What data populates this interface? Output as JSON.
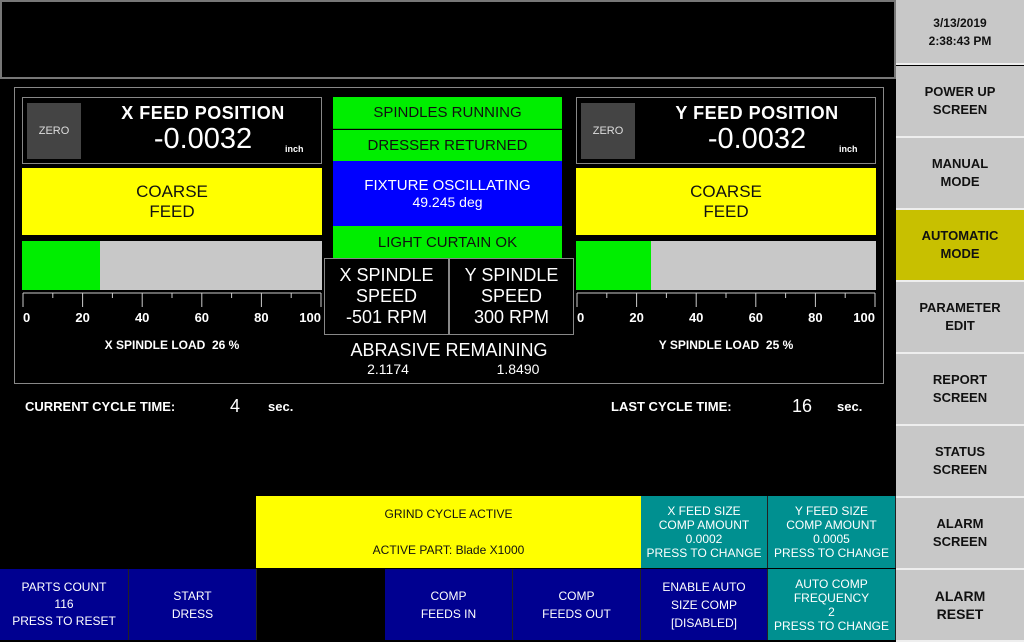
{
  "clock": {
    "date": "3/13/2019",
    "time": "2:38:43 PM"
  },
  "nav": [
    {
      "l1": "POWER UP",
      "l2": "SCREEN"
    },
    {
      "l1": "MANUAL",
      "l2": "MODE"
    },
    {
      "l1": "AUTOMATIC",
      "l2": "MODE",
      "active": true
    },
    {
      "l1": "PARAMETER",
      "l2": "EDIT"
    },
    {
      "l1": "REPORT",
      "l2": "SCREEN"
    },
    {
      "l1": "STATUS",
      "l2": "SCREEN"
    },
    {
      "l1": "ALARM",
      "l2": "SCREEN"
    },
    {
      "l1": "ALARM",
      "l2": "RESET"
    }
  ],
  "x_feed": {
    "zero": "ZERO",
    "title": "X FEED POSITION",
    "value": "-0.0032",
    "unit": "inch",
    "mode_l1": "COARSE",
    "mode_l2": "FEED",
    "load_label": "X SPINDLE LOAD",
    "load_value": "26 %",
    "load_percent": 26
  },
  "y_feed": {
    "zero": "ZERO",
    "title": "Y FEED POSITION",
    "value": "-0.0032",
    "unit": "inch",
    "mode_l1": "COARSE",
    "mode_l2": "FEED",
    "load_label": "Y SPINDLE LOAD",
    "load_value": "25 %",
    "load_percent": 25
  },
  "scale_ticks": [
    "0",
    "20",
    "40",
    "60",
    "80",
    "100"
  ],
  "status": {
    "spindles": "SPINDLES RUNNING",
    "dresser": "DRESSER RETURNED",
    "fixture": "FIXTURE OSCILLATING",
    "fixture_value": "49.245  deg",
    "curtain": "LIGHT CURTAIN OK"
  },
  "spindle_speed": {
    "x": {
      "l1": "X SPINDLE",
      "l2": "SPEED",
      "value": "-501 RPM"
    },
    "y": {
      "l1": "Y SPINDLE",
      "l2": "SPEED",
      "value": "300 RPM"
    }
  },
  "abrasive": {
    "label": "ABRASIVE REMAINING",
    "x": "2.1174",
    "y": "1.8490"
  },
  "cycle": {
    "current_label": "CURRENT CYCLE TIME:",
    "current": "4",
    "last_label": "LAST CYCLE TIME:",
    "last": "16",
    "unit": "sec."
  },
  "grind": {
    "status": "GRIND CYCLE ACTIVE",
    "part": "ACTIVE PART: Blade X1000"
  },
  "x_comp": {
    "l1": "X FEED SIZE",
    "l2": "COMP AMOUNT",
    "value": "0.0002",
    "l4": "PRESS TO CHANGE"
  },
  "y_comp": {
    "l1": "Y FEED SIZE",
    "l2": "COMP AMOUNT",
    "value": "0.0005",
    "l4": "PRESS TO CHANGE"
  },
  "buttons": {
    "parts": {
      "l1": "PARTS COUNT",
      "value": "116",
      "l3": "PRESS TO RESET"
    },
    "dress": {
      "l1": "START",
      "l2": "DRESS"
    },
    "comp_in": {
      "l1": "COMP",
      "l2": "FEEDS IN"
    },
    "comp_out": {
      "l1": "COMP",
      "l2": "FEEDS OUT"
    },
    "auto_size": {
      "l1": "ENABLE AUTO",
      "l2": "SIZE COMP",
      "l3": "[DISABLED]"
    },
    "auto_freq": {
      "l1": "AUTO COMP",
      "l2": "FREQUENCY",
      "value": "2",
      "l4": "PRESS TO CHANGE"
    }
  },
  "colors": {
    "green": "#00ee00",
    "yellow": "#ffff00",
    "blue": "#0000ff",
    "navy": "#000090",
    "teal": "#009090",
    "olive": "#c8c000",
    "gray": "#c8c8c8"
  }
}
